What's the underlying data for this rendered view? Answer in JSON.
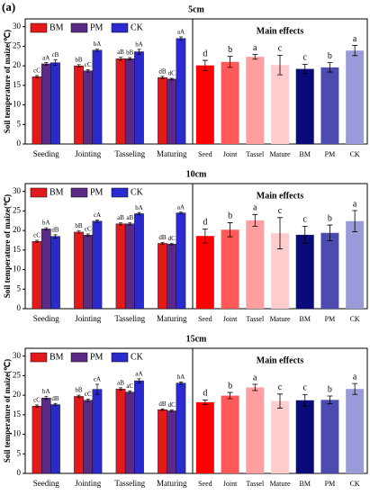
{
  "panel_label": "(a)",
  "chart_data": [
    {
      "type": "bar",
      "title": "5cm",
      "ylabel": "Soil temperature of maize(℃)",
      "categories": [
        "Seeding",
        "Jointing",
        "Tasseling",
        "Maturing"
      ],
      "ylim": [
        0,
        32
      ],
      "yticks": [
        0,
        5,
        10,
        15,
        20,
        25,
        30
      ],
      "series": [
        {
          "name": "BM",
          "color": "#e31a1c",
          "values": [
            17.2,
            20.0,
            21.8,
            17.0
          ],
          "errors": [
            0.3,
            0.3,
            0.4,
            0.3
          ],
          "letters": [
            "cC",
            "bB",
            "aB",
            "dB"
          ]
        },
        {
          "name": "PM",
          "color": "#5b2a86",
          "values": [
            20.5,
            18.7,
            21.8,
            16.6
          ],
          "errors": [
            0.3,
            0.3,
            0.3,
            0.2
          ],
          "letters": [
            "aA",
            "cC",
            "bB",
            "dC"
          ]
        },
        {
          "name": "CK",
          "color": "#2a2acf",
          "values": [
            20.8,
            24.0,
            23.6,
            27.0
          ],
          "errors": [
            0.7,
            0.3,
            0.6,
            0.4
          ],
          "letters": [
            "cB",
            "bA",
            "bA",
            "aA"
          ]
        }
      ]
    },
    {
      "type": "bar",
      "title": "Main effects",
      "categories": [
        "Seed",
        "Joint",
        "Tassel",
        "Mature",
        "BM",
        "PM",
        "CK"
      ],
      "ylim": [
        0,
        32
      ],
      "values": [
        20.1,
        21.0,
        22.3,
        20.2,
        19.2,
        19.6,
        23.9
      ],
      "errors": [
        1.3,
        1.4,
        0.6,
        2.5,
        1.2,
        1.2,
        1.3
      ],
      "letters": [
        "d",
        "b",
        "a",
        "c",
        "c",
        "b",
        "a"
      ],
      "colors": [
        "#ff0000",
        "#ff5a5a",
        "#ff9e9e",
        "#ffcccc",
        "#0a0a7a",
        "#4b4bb0",
        "#9a9ad8"
      ]
    },
    {
      "type": "bar",
      "title": "10cm",
      "ylabel": "Soil temperature of maize(℃)",
      "categories": [
        "Seeding",
        "Jointing",
        "Tasseling",
        "Maturing"
      ],
      "ylim": [
        0,
        32
      ],
      "yticks": [
        0,
        5,
        10,
        15,
        20,
        25,
        30
      ],
      "series": [
        {
          "name": "BM",
          "color": "#e31a1c",
          "values": [
            17.2,
            19.6,
            21.7,
            16.7
          ],
          "errors": [
            0.3,
            0.3,
            0.3,
            0.2
          ],
          "letters": [
            "cC",
            "bB",
            "aB",
            "dB"
          ]
        },
        {
          "name": "PM",
          "color": "#5b2a86",
          "values": [
            20.4,
            18.8,
            21.7,
            16.5
          ],
          "errors": [
            0.3,
            0.3,
            0.3,
            0.2
          ],
          "letters": [
            "bA",
            "cC",
            "aB",
            "dC"
          ]
        },
        {
          "name": "CK",
          "color": "#2a2acf",
          "values": [
            18.5,
            22.4,
            24.3,
            24.5
          ],
          "errors": [
            0.4,
            0.3,
            0.3,
            0.2
          ],
          "letters": [
            "dB",
            "cA",
            "bA",
            "aA"
          ]
        }
      ]
    },
    {
      "type": "bar",
      "title": "Main effects",
      "categories": [
        "Seed",
        "Joint",
        "Tassel",
        "Mature",
        "BM",
        "PM",
        "CK"
      ],
      "ylim": [
        0,
        32
      ],
      "values": [
        18.6,
        20.2,
        22.6,
        19.3,
        18.9,
        19.4,
        22.4
      ],
      "errors": [
        1.8,
        1.8,
        1.5,
        4.0,
        2.2,
        2.0,
        2.7
      ],
      "letters": [
        "d",
        "b",
        "a",
        "c",
        "c",
        "b",
        "a"
      ],
      "colors": [
        "#ff0000",
        "#ff5a5a",
        "#ff9e9e",
        "#ffcccc",
        "#0a0a7a",
        "#4b4bb0",
        "#9a9ad8"
      ]
    },
    {
      "type": "bar",
      "title": "15cm",
      "ylabel": "Soil temperature of maize(℃)",
      "categories": [
        "Seeding",
        "Jointing",
        "Tasseling",
        "Maturing"
      ],
      "ylim": [
        0,
        32
      ],
      "yticks": [
        0,
        5,
        10,
        15,
        20,
        25,
        30
      ],
      "series": [
        {
          "name": "BM",
          "color": "#e31a1c",
          "values": [
            17.2,
            19.7,
            21.6,
            16.3
          ],
          "errors": [
            0.3,
            0.3,
            0.3,
            0.2
          ],
          "letters": [
            "cC",
            "bB",
            "aB",
            "dB"
          ]
        },
        {
          "name": "PM",
          "color": "#5b2a86",
          "values": [
            19.3,
            18.7,
            20.8,
            16.0
          ],
          "errors": [
            0.4,
            0.3,
            0.3,
            0.2
          ],
          "letters": [
            "bA",
            "cC",
            "aC",
            "dC"
          ]
        },
        {
          "name": "CK",
          "color": "#2a2acf",
          "values": [
            17.6,
            21.5,
            23.7,
            23.1
          ],
          "errors": [
            0.3,
            1.3,
            0.5,
            0.3
          ],
          "letters": [
            "dB",
            "cA",
            "aA",
            "bA"
          ]
        }
      ]
    },
    {
      "type": "bar",
      "title": "Main effects",
      "categories": [
        "Seed",
        "Joint",
        "Tassel",
        "Mature",
        "BM",
        "PM",
        "CK"
      ],
      "ylim": [
        0,
        32
      ],
      "values": [
        18.2,
        19.9,
        22.0,
        18.5,
        18.7,
        18.8,
        21.6
      ],
      "errors": [
        0.6,
        0.8,
        0.8,
        1.8,
        1.5,
        1.0,
        1.4
      ],
      "letters": [
        "d",
        "b",
        "a",
        "c",
        "c",
        "b",
        "a"
      ],
      "colors": [
        "#ff0000",
        "#ff5a5a",
        "#ff9e9e",
        "#ffcccc",
        "#0a0a7a",
        "#4b4bb0",
        "#9a9ad8"
      ]
    }
  ]
}
